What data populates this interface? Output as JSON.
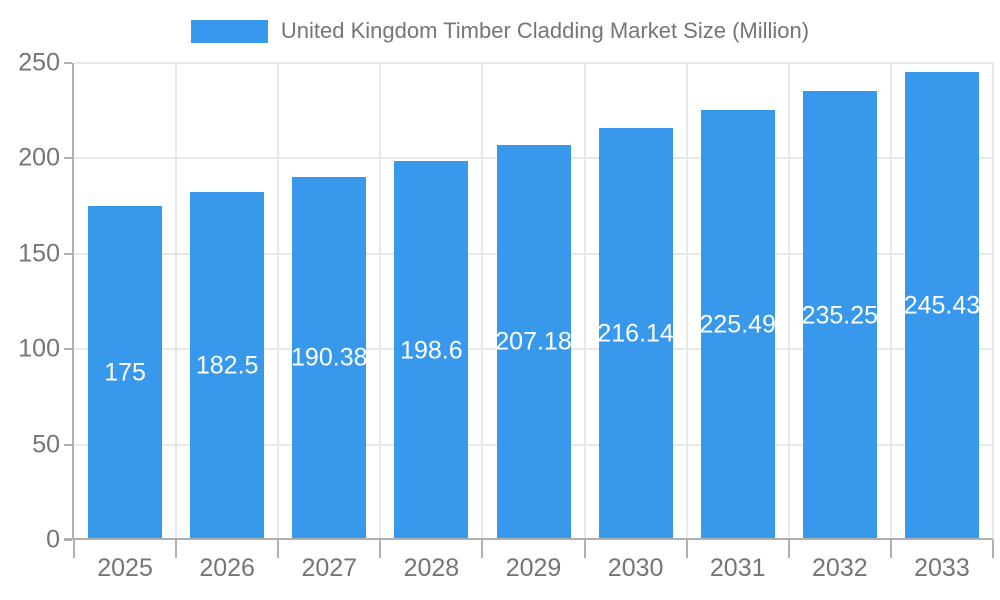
{
  "chart_data": {
    "type": "bar",
    "title": "United Kingdom Timber Cladding Market Size (Million)",
    "categories": [
      "2025",
      "2026",
      "2027",
      "2028",
      "2029",
      "2030",
      "2031",
      "2032",
      "2033"
    ],
    "values": [
      175,
      182.5,
      190.38,
      198.6,
      207.18,
      216.14,
      225.49,
      235.25,
      245.43
    ],
    "value_labels": [
      "175",
      "182.5",
      "190.38",
      "198.6",
      "207.18",
      "216.14",
      "225.49",
      "235.25",
      "245.43"
    ],
    "xlabel": "",
    "ylabel": "",
    "ylim": [
      0,
      250
    ],
    "yticks": [
      0,
      50,
      100,
      150,
      200,
      250
    ],
    "grid": "on",
    "legend_position": "top-center",
    "colors": {
      "bar": "#3898ec",
      "bar_label": "#ffffff",
      "axis_text": "#757575",
      "grid_line": "#e8e8e8",
      "axis_line": "#b0b0b0",
      "background": "#ffffff"
    }
  }
}
